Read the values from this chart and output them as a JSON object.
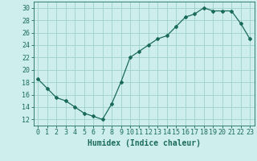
{
  "x": [
    0,
    1,
    2,
    3,
    4,
    5,
    6,
    7,
    8,
    9,
    10,
    11,
    12,
    13,
    14,
    15,
    16,
    17,
    18,
    19,
    20,
    21,
    22,
    23
  ],
  "y": [
    18.5,
    17.0,
    15.5,
    15.0,
    14.0,
    13.0,
    12.5,
    12.0,
    14.5,
    18.0,
    22.0,
    23.0,
    24.0,
    25.0,
    25.5,
    27.0,
    28.5,
    29.0,
    30.0,
    29.5,
    29.5,
    29.5,
    27.5,
    25.0
  ],
  "line_color": "#1a6b5a",
  "marker": "D",
  "marker_size": 2,
  "bg_color": "#ceeeed",
  "grid_color": "#9fcfcf",
  "xlabel": "Humidex (Indice chaleur)",
  "xlim": [
    -0.5,
    23.5
  ],
  "ylim": [
    11,
    31
  ],
  "yticks": [
    12,
    14,
    16,
    18,
    20,
    22,
    24,
    26,
    28,
    30
  ],
  "xticks": [
    0,
    1,
    2,
    3,
    4,
    5,
    6,
    7,
    8,
    9,
    10,
    11,
    12,
    13,
    14,
    15,
    16,
    17,
    18,
    19,
    20,
    21,
    22,
    23
  ],
  "tick_color": "#1a6b5a",
  "label_fontsize": 6,
  "xlabel_fontsize": 7
}
